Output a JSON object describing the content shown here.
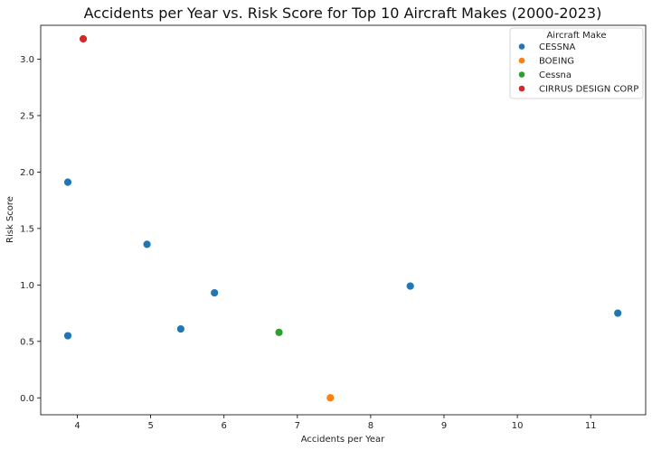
{
  "chart_data": {
    "type": "scatter",
    "title": "Accidents per Year vs. Risk Score for Top 10 Aircraft Makes (2000-2023)",
    "xlabel": "Accidents per Year",
    "ylabel": "Risk Score",
    "xlim": [
      3.5,
      11.75
    ],
    "ylim": [
      -0.15,
      3.3
    ],
    "xticks": [
      4,
      5,
      6,
      7,
      8,
      9,
      10,
      11
    ],
    "yticks": [
      0.0,
      0.5,
      1.0,
      1.5,
      2.0,
      2.5,
      3.0
    ],
    "xtick_labels": [
      "4",
      "5",
      "6",
      "7",
      "8",
      "9",
      "10",
      "11"
    ],
    "ytick_labels": [
      "0.0",
      "0.5",
      "1.0",
      "1.5",
      "2.0",
      "2.5",
      "3.0"
    ],
    "grid": false,
    "legend": {
      "title": "Aircraft Make",
      "placement": "top-right"
    },
    "series": [
      {
        "name": "CESSNA",
        "color": "#1f77b4",
        "points": [
          {
            "x": 3.87,
            "y": 1.91
          },
          {
            "x": 3.87,
            "y": 0.55
          },
          {
            "x": 4.95,
            "y": 1.36
          },
          {
            "x": 5.41,
            "y": 0.61
          },
          {
            "x": 5.87,
            "y": 0.93
          },
          {
            "x": 8.54,
            "y": 0.99
          },
          {
            "x": 11.37,
            "y": 0.75
          }
        ]
      },
      {
        "name": "BOEING",
        "color": "#ff7f0e",
        "points": [
          {
            "x": 7.45,
            "y": 0.0
          }
        ]
      },
      {
        "name": "Cessna",
        "color": "#2ca02c",
        "points": [
          {
            "x": 6.75,
            "y": 0.58
          }
        ]
      },
      {
        "name": "CIRRUS DESIGN CORP",
        "color": "#d62728",
        "points": [
          {
            "x": 4.08,
            "y": 3.18
          }
        ]
      }
    ]
  }
}
